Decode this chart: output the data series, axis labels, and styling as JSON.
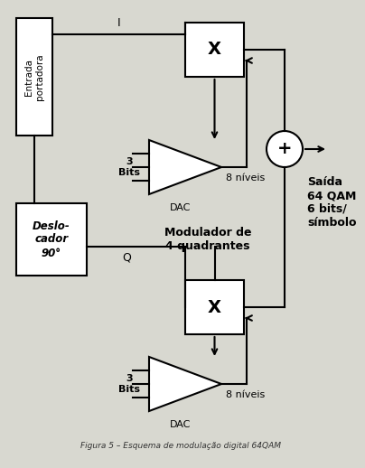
{
  "bg_color": "#d8d8d0",
  "line_color": "#000000",
  "box_color": "#ffffff",
  "text_entrada": "Entrada\nportadora",
  "text_I": "I",
  "text_Q": "Q",
  "text_X": "X",
  "text_plus": "+",
  "text_3bits": "3\nBits",
  "text_dac": "DAC",
  "text_8niveis": "8 níveis",
  "text_deslocador": "Deslo-\ncador\n90°",
  "text_modulador": "Modulador de\n4 quadrantes",
  "text_saida": "Saída\n64 QAM\n6 bits/\nsímbolo",
  "fig_title": "Figura 5 – Esquema de modulação digital 64QAM"
}
